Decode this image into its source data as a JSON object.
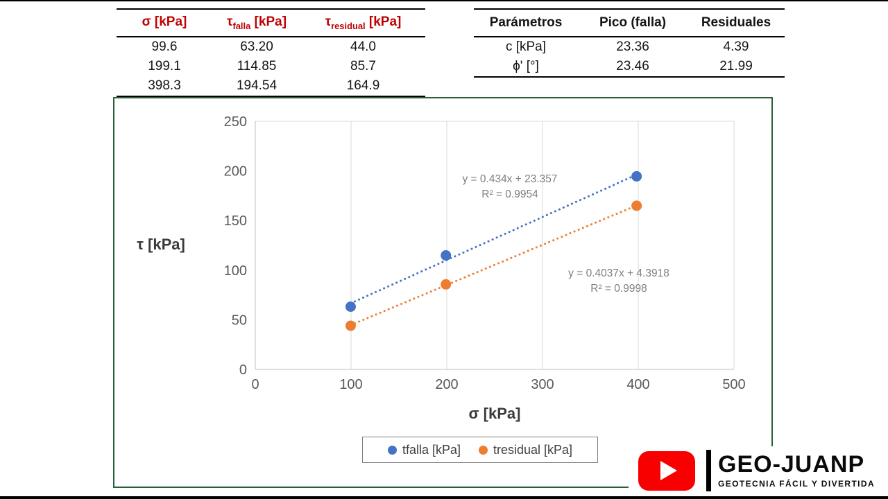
{
  "left_table": {
    "header_color": "#C00000",
    "headers": [
      {
        "sym": "σ",
        "sub": "",
        "unit": " [kPa]"
      },
      {
        "sym": "τ",
        "sub": "falla",
        "unit": " [kPa]"
      },
      {
        "sym": "τ",
        "sub": "residual",
        "unit": " [kPa]"
      }
    ],
    "rows": [
      [
        "99.6",
        "63.20",
        "44.0"
      ],
      [
        "199.1",
        "114.85",
        "85.7"
      ],
      [
        "398.3",
        "194.54",
        "164.9"
      ]
    ]
  },
  "right_table": {
    "headers": [
      "Parámetros",
      "Pico (falla)",
      "Residuales"
    ],
    "rows": [
      [
        "c [kPa]",
        "23.36",
        "4.39"
      ],
      [
        "ϕ' [°]",
        "23.46",
        "21.99"
      ]
    ]
  },
  "chart_data": {
    "type": "scatter",
    "xlabel": "σ [kPa]",
    "ylabel": "τ [kPa]",
    "xlim": [
      0,
      500
    ],
    "ylim": [
      0,
      250
    ],
    "x_ticks": [
      0,
      100,
      200,
      300,
      400,
      500
    ],
    "y_ticks": [
      0,
      50,
      100,
      150,
      200,
      250
    ],
    "grid": "vertical-major",
    "legend_position": "bottom",
    "x_values": [
      99.6,
      199.1,
      398.3
    ],
    "series": [
      {
        "name": "tfalla [kPa]",
        "color": "#4472C4",
        "values": [
          63.2,
          114.85,
          194.54
        ],
        "trendline": {
          "style": "dotted",
          "slope": 0.434,
          "intercept": 23.357,
          "equation": "y = 0.434x + 23.357",
          "r2": "R² = 0.9954"
        }
      },
      {
        "name": "tresidual [kPa]",
        "color": "#ED7D31",
        "values": [
          44.0,
          85.7,
          164.9
        ],
        "trendline": {
          "style": "dotted",
          "slope": 0.4037,
          "intercept": 4.3918,
          "equation": "y = 0.4037x + 4.3918",
          "r2": "R² = 0.9998"
        }
      }
    ]
  },
  "branding": {
    "name": "GEO-JUANP",
    "tagline": "GEOTECNIA FÁCIL Y DIVERTIDA",
    "accent": "#FF0000"
  }
}
